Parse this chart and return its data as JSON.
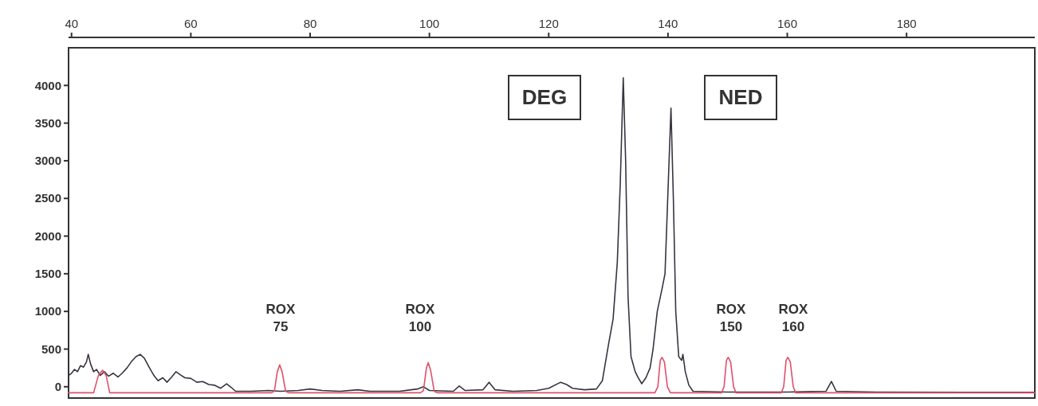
{
  "chart_data": {
    "type": "line",
    "xlim": [
      39.5,
      201.5
    ],
    "xticks": [
      40,
      60,
      80,
      100,
      120,
      140,
      160,
      180
    ],
    "ylim": [
      -150,
      4500
    ],
    "yticks": [
      0,
      500,
      1000,
      1500,
      2000,
      2500,
      3000,
      3500,
      4000
    ],
    "grid": false,
    "marker": "none",
    "line_style": "solid",
    "series": [
      {
        "color": "#3a3340",
        "x": [
          39.5,
          40,
          40.5,
          41,
          41.5,
          42,
          42.5,
          42.8,
          43.2,
          43.7,
          44.2,
          44.8,
          45.5,
          46.2,
          47,
          47.8,
          48.5,
          49.3,
          50,
          50.8,
          51.5,
          52.2,
          53,
          53.8,
          54.5,
          55.3,
          56,
          56.8,
          57.5,
          58.2,
          59,
          60,
          61,
          62,
          63,
          64,
          65,
          66,
          66.8,
          67.5,
          70,
          73,
          75,
          78,
          80,
          82,
          85,
          88,
          90,
          95,
          98,
          99,
          100,
          104,
          105,
          106,
          109,
          110,
          111,
          114,
          118,
          120,
          122,
          123,
          124,
          126,
          128,
          129,
          130,
          130.8,
          131.5,
          132,
          132.5,
          132.9,
          133.3,
          133.8,
          134.5,
          135,
          135.6,
          136.3,
          137,
          137.5,
          138.2,
          139,
          139.5,
          140,
          140.5,
          140.9,
          141.3,
          141.8,
          142.3,
          142.5,
          142.9,
          143.5,
          144.2,
          150,
          160,
          166.5,
          167.4,
          168.2,
          175,
          190,
          201.5
        ],
        "values": [
          150,
          180,
          230,
          200,
          280,
          260,
          330,
          430,
          300,
          200,
          230,
          150,
          200,
          140,
          180,
          130,
          180,
          250,
          330,
          400,
          430,
          380,
          260,
          150,
          80,
          120,
          60,
          130,
          200,
          160,
          120,
          110,
          60,
          70,
          30,
          20,
          -20,
          40,
          -10,
          -60,
          -60,
          -50,
          -60,
          -50,
          -30,
          -50,
          -60,
          -40,
          -60,
          -60,
          -30,
          0,
          -50,
          -60,
          10,
          -50,
          -40,
          60,
          -40,
          -60,
          -50,
          -20,
          60,
          30,
          -20,
          -40,
          -30,
          80,
          550,
          900,
          1650,
          2700,
          4100,
          3000,
          1200,
          400,
          200,
          120,
          40,
          120,
          250,
          500,
          1000,
          1300,
          1500,
          2600,
          3700,
          2500,
          1000,
          400,
          350,
          430,
          200,
          20,
          -60,
          -70,
          -70,
          -60,
          70,
          -60,
          -70,
          -75,
          -75
        ]
      },
      {
        "color": "#e0506a",
        "x": [
          39.5,
          43,
          43.7,
          44.5,
          45.2,
          45.8,
          46.4,
          47,
          73.5,
          74,
          74.5,
          74.9,
          75.3,
          75.9,
          76.4,
          98.5,
          99,
          99.5,
          99.8,
          100.2,
          100.8,
          101.3,
          137.8,
          138.3,
          138.7,
          139,
          139.4,
          139.9,
          140.4,
          149,
          149.4,
          149.8,
          150.1,
          150.5,
          151,
          151.4,
          159,
          159.4,
          159.8,
          160.1,
          160.5,
          161,
          161.4,
          201.5
        ],
        "values": [
          -80,
          -80,
          -80,
          150,
          220,
          150,
          -80,
          -80,
          -80,
          -60,
          200,
          290,
          200,
          -60,
          -80,
          -80,
          -50,
          250,
          320,
          220,
          -60,
          -80,
          -80,
          0,
          350,
          390,
          330,
          0,
          -80,
          -80,
          0,
          350,
          390,
          330,
          0,
          -80,
          -80,
          0,
          350,
          390,
          330,
          0,
          -80,
          -80
        ]
      }
    ],
    "annotations": [
      "DEG",
      "NED",
      "ROX\n75",
      "ROX\n100",
      "ROX\n150",
      "ROX\n160"
    ]
  }
}
